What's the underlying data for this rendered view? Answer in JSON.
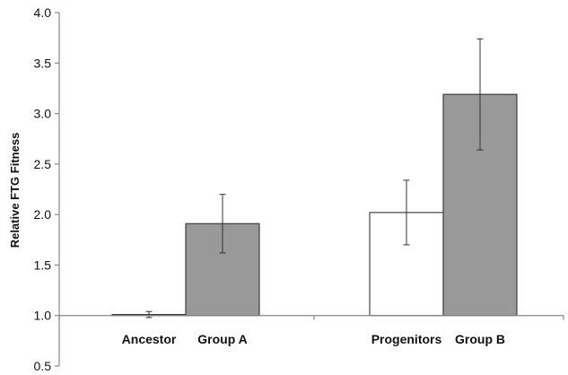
{
  "chart_data": {
    "type": "bar",
    "title": "",
    "xlabel": "",
    "ylabel": "Relative FTG Fitness",
    "ylim": [
      0.5,
      4.0
    ],
    "yticks": [
      "0.5",
      "1.0",
      "1.5",
      "2.0",
      "2.5",
      "3.0",
      "3.5",
      "4.0"
    ],
    "baseline": 1.0,
    "grid": false,
    "legend": "none",
    "groups": [
      {
        "bars": [
          {
            "label": "Ancestor",
            "value": 1.01,
            "error": 0.03,
            "color": "#ffffff"
          },
          {
            "label": "Group A",
            "value": 1.91,
            "error": 0.29,
            "color": "#999999"
          }
        ]
      },
      {
        "bars": [
          {
            "label": "Progenitors",
            "value": 2.02,
            "error": 0.32,
            "color": "#ffffff"
          },
          {
            "label": "Group B",
            "value": 3.19,
            "error": 0.55,
            "color": "#999999"
          }
        ]
      }
    ]
  }
}
